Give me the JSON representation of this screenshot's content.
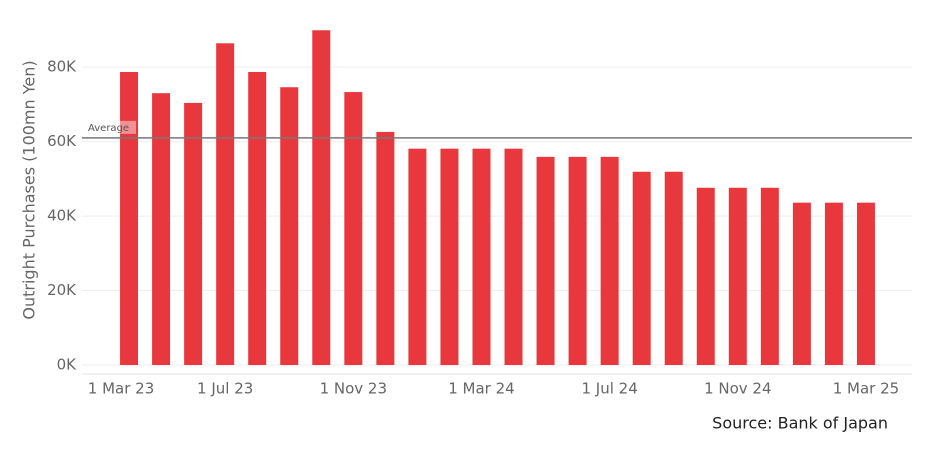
{
  "chart_data": {
    "type": "bar",
    "y_label": "Outright Purchases (100mn Yen)",
    "source": "Source: Bank of Japan",
    "x": [
      "2023-04",
      "2023-05",
      "2023-06",
      "2023-07",
      "2023-08",
      "2023-09",
      "2023-10",
      "2023-11",
      "2023-12",
      "2024-01",
      "2024-02",
      "2024-03",
      "2024-04",
      "2024-05",
      "2024-06",
      "2024-07",
      "2024-08",
      "2024-09",
      "2024-10",
      "2024-11",
      "2024-12",
      "2025-01",
      "2025-02",
      "2025-03"
    ],
    "values": [
      78700,
      73000,
      70400,
      86400,
      78700,
      74600,
      89900,
      73300,
      62600,
      58100,
      58100,
      58100,
      58100,
      55900,
      55900,
      55900,
      51900,
      51900,
      47600,
      47600,
      47600,
      43600,
      43600,
      43600
    ],
    "color": "#e8383d",
    "xlim": [
      "2023-03",
      "2025-04"
    ],
    "xticks": [
      {
        "value": "2023-03",
        "label": "1 Mar 23"
      },
      {
        "value": "2023-07",
        "label": "1 Jul 23"
      },
      {
        "value": "2023-11",
        "label": "1 Nov 23"
      },
      {
        "value": "2024-03",
        "label": "1 Mar 24"
      },
      {
        "value": "2024-07",
        "label": "1 Jul 24"
      },
      {
        "value": "2024-11",
        "label": "1 Nov 24"
      },
      {
        "value": "2025-03",
        "label": "1 Mar 25"
      }
    ],
    "ylim": [
      0,
      94000
    ],
    "yticks": [
      {
        "value": 0,
        "label": "0K"
      },
      {
        "value": 20000,
        "label": "20K"
      },
      {
        "value": 40000,
        "label": "40K"
      },
      {
        "value": 60000,
        "label": "60K"
      },
      {
        "value": 80000,
        "label": "80K"
      }
    ],
    "grid": true,
    "average": {
      "label": "Average",
      "value": 61000
    }
  }
}
